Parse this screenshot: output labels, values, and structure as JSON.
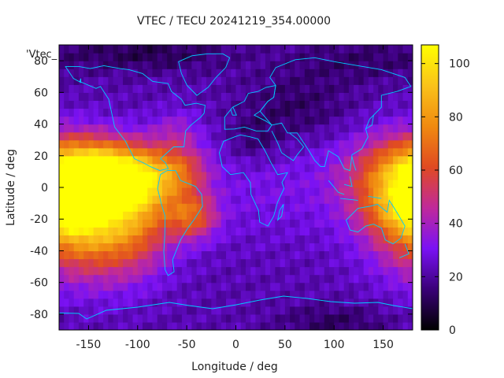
{
  "chart_data": {
    "type": "heatmap",
    "title": "VTEC / TECU 20241219_354.00000",
    "xlabel": "Longitude / deg",
    "ylabel": "Latitude / deg",
    "key_label": "'Vtec_",
    "xlim": [
      -180,
      180
    ],
    "ylim": [
      -90,
      90
    ],
    "xticks": [
      -150,
      -100,
      -50,
      0,
      50,
      100,
      150
    ],
    "yticks": [
      -80,
      -60,
      -40,
      -20,
      0,
      20,
      40,
      60,
      80
    ],
    "colorbar": {
      "min": 0,
      "max": 107,
      "ticks": [
        0,
        20,
        40,
        60,
        80,
        100
      ]
    },
    "colormap": [
      "#000000",
      "#3a0078",
      "#7a12f4",
      "#c02a9a",
      "#e04a22",
      "#f08a10",
      "#fac21a",
      "#ffff00"
    ],
    "coastline_color": "#00ccff",
    "grid": false,
    "legend": "none",
    "field": {
      "description_units": "TECU",
      "background_value": 22,
      "sources": [
        {
          "lon": -150,
          "lat": -20,
          "amp": 68,
          "slon": 45,
          "slat": 24
        },
        {
          "lon": -140,
          "lat": 12,
          "amp": 52,
          "slon": 35,
          "slat": 13
        },
        {
          "lon": -95,
          "lat": 5,
          "amp": 40,
          "slon": 25,
          "slat": 14
        },
        {
          "lon": -55,
          "lat": 10,
          "amp": 30,
          "slon": 20,
          "slat": 11
        },
        {
          "lon": -45,
          "lat": -18,
          "amp": 38,
          "slon": 18,
          "slat": 10
        },
        {
          "lon": -100,
          "lat": -20,
          "amp": 18,
          "slon": 25,
          "slat": 22
        },
        {
          "lon": 170,
          "lat": 8,
          "amp": 45,
          "slon": 40,
          "slat": 18
        },
        {
          "lon": 180,
          "lat": -15,
          "amp": 25,
          "slon": 30,
          "slat": 12
        },
        {
          "lon": -60,
          "lat": 35,
          "amp": 14,
          "slon": 18,
          "slat": 10
        },
        {
          "lon": 35,
          "lat": 0,
          "amp": 8,
          "slon": 60,
          "slat": 25
        },
        {
          "lon": 60,
          "lat": 50,
          "amp": -10,
          "slon": 40,
          "slat": 15
        },
        {
          "lon": 20,
          "lat": 30,
          "amp": -9,
          "slon": 20,
          "slat": 10
        },
        {
          "lon": -90,
          "lat": 85,
          "amp": -12,
          "slon": 60,
          "slat": 8
        },
        {
          "lon": 100,
          "lat": -85,
          "amp": -10,
          "slon": 40,
          "slat": 8
        },
        {
          "lon": 120,
          "lat": 80,
          "amp": -8,
          "slon": 50,
          "slat": 10
        }
      ]
    }
  }
}
